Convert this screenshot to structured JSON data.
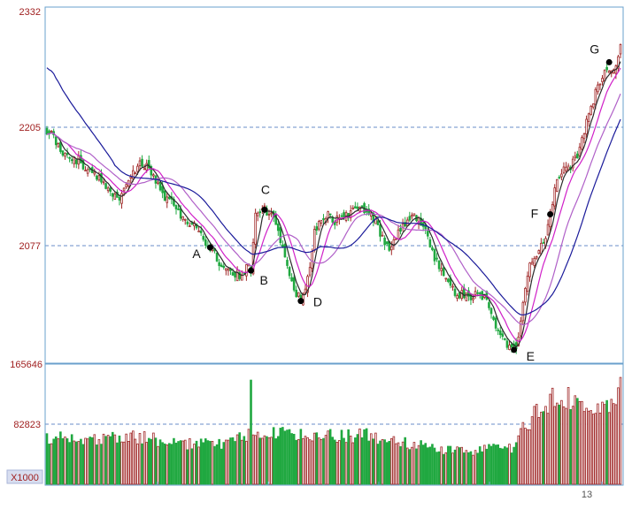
{
  "chart_data": {
    "type": "candlestick",
    "y_axis": {
      "ticks": [
        "2332",
        "2205",
        "2077"
      ],
      "range": [
        1946,
        2332
      ]
    },
    "volume_axis": {
      "ticks": [
        "165646",
        "82823"
      ],
      "unit_label": "X1000"
    },
    "x_axis": {
      "tick_labels": [
        "13"
      ]
    },
    "annotations": [
      {
        "label": "A",
        "x": 72,
        "price": 2075
      },
      {
        "label": "B",
        "x": 90,
        "price": 2050
      },
      {
        "label": "C",
        "x": 96,
        "price": 2116
      },
      {
        "label": "D",
        "x": 112,
        "price": 2017
      },
      {
        "label": "E",
        "x": 206,
        "price": 1964
      },
      {
        "label": "F",
        "x": 222,
        "price": 2111
      },
      {
        "label": "G",
        "x": 248,
        "price": 2276
      }
    ],
    "price_anchors": [
      [
        0,
        2203
      ],
      [
        3,
        2195
      ],
      [
        6,
        2178
      ],
      [
        10,
        2172
      ],
      [
        14,
        2170
      ],
      [
        18,
        2160
      ],
      [
        22,
        2150
      ],
      [
        26,
        2143
      ],
      [
        29,
        2130
      ],
      [
        32,
        2127
      ],
      [
        35,
        2140
      ],
      [
        38,
        2157
      ],
      [
        41,
        2168
      ],
      [
        44,
        2162
      ],
      [
        47,
        2150
      ],
      [
        50,
        2142
      ],
      [
        53,
        2125
      ],
      [
        56,
        2122
      ],
      [
        59,
        2110
      ],
      [
        62,
        2102
      ],
      [
        65,
        2100
      ],
      [
        68,
        2088
      ],
      [
        71,
        2074
      ],
      [
        74,
        2067
      ],
      [
        77,
        2053
      ],
      [
        80,
        2049
      ],
      [
        83,
        2047
      ],
      [
        86,
        2045
      ],
      [
        88,
        2055
      ],
      [
        90,
        2052
      ],
      [
        92,
        2115
      ],
      [
        95,
        2117
      ],
      [
        98,
        2113
      ],
      [
        101,
        2102
      ],
      [
        104,
        2075
      ],
      [
        107,
        2048
      ],
      [
        110,
        2025
      ],
      [
        112,
        2018
      ],
      [
        114,
        2030
      ],
      [
        116,
        2058
      ],
      [
        118,
        2090
      ],
      [
        121,
        2105
      ],
      [
        124,
        2113
      ],
      [
        127,
        2102
      ],
      [
        130,
        2112
      ],
      [
        133,
        2108
      ],
      [
        136,
        2116
      ],
      [
        139,
        2119
      ],
      [
        142,
        2113
      ],
      [
        145,
        2104
      ],
      [
        148,
        2085
      ],
      [
        151,
        2075
      ],
      [
        154,
        2087
      ],
      [
        157,
        2100
      ],
      [
        160,
        2106
      ],
      [
        163,
        2109
      ],
      [
        166,
        2097
      ],
      [
        169,
        2078
      ],
      [
        172,
        2058
      ],
      [
        175,
        2043
      ],
      [
        178,
        2033
      ],
      [
        181,
        2023
      ],
      [
        184,
        2025
      ],
      [
        187,
        2022
      ],
      [
        190,
        2024
      ],
      [
        193,
        2022
      ],
      [
        196,
        2003
      ],
      [
        199,
        1983
      ],
      [
        202,
        1973
      ],
      [
        205,
        1968
      ],
      [
        207,
        1965
      ],
      [
        209,
        1998
      ],
      [
        211,
        2035
      ],
      [
        214,
        2063
      ],
      [
        217,
        2073
      ],
      [
        220,
        2083
      ],
      [
        222,
        2110
      ],
      [
        225,
        2148
      ],
      [
        228,
        2160
      ],
      [
        231,
        2163
      ],
      [
        234,
        2176
      ],
      [
        237,
        2203
      ],
      [
        240,
        2225
      ],
      [
        243,
        2253
      ],
      [
        246,
        2263
      ],
      [
        249,
        2266
      ],
      [
        251,
        2274
      ],
      [
        253,
        2300
      ]
    ],
    "volume_anchors": [
      [
        0,
        65
      ],
      [
        20,
        60
      ],
      [
        40,
        65
      ],
      [
        60,
        55
      ],
      [
        80,
        55
      ],
      [
        89,
        70
      ],
      [
        90,
        125
      ],
      [
        91,
        70
      ],
      [
        100,
        70
      ],
      [
        120,
        65
      ],
      [
        140,
        68
      ],
      [
        160,
        55
      ],
      [
        180,
        45
      ],
      [
        195,
        48
      ],
      [
        205,
        50
      ],
      [
        210,
        75
      ],
      [
        215,
        95
      ],
      [
        222,
        115
      ],
      [
        228,
        120
      ],
      [
        235,
        118
      ],
      [
        240,
        112
      ],
      [
        245,
        110
      ],
      [
        250,
        112
      ],
      [
        253,
        150
      ]
    ],
    "n_bars": 254,
    "moving_averages": [
      {
        "period": 5,
        "color": "#2a2a2a"
      },
      {
        "period": 10,
        "color": "#d020c8"
      },
      {
        "period": 20,
        "color": "#b060c8"
      },
      {
        "period": 30,
        "color": "#1a1a9a"
      }
    ],
    "colors": {
      "up": "#a02828",
      "down": "#20a840",
      "border": "#6aa0cc",
      "grid": "#6a8cc8"
    }
  }
}
